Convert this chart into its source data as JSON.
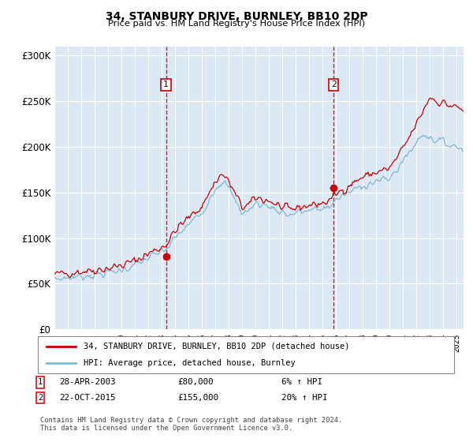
{
  "title": "34, STANBURY DRIVE, BURNLEY, BB10 2DP",
  "subtitle": "Price paid vs. HM Land Registry's House Price Index (HPI)",
  "ylabel_ticks": [
    "£0",
    "£50K",
    "£100K",
    "£150K",
    "£200K",
    "£250K",
    "£300K"
  ],
  "ytick_values": [
    0,
    50000,
    100000,
    150000,
    200000,
    250000,
    300000
  ],
  "ylim": [
    0,
    310000
  ],
  "xlim_start": 1995.0,
  "xlim_end": 2025.5,
  "background_color": "#ffffff",
  "plot_bg_color": "#dce9f5",
  "grid_color": "#ffffff",
  "hpi_color": "#7db8d8",
  "price_color": "#cc0000",
  "vline_color": "#cc0000",
  "transaction1_x": 2003.32,
  "transaction1_y": 80000,
  "transaction2_x": 2015.81,
  "transaction2_y": 155000,
  "legend_line1": "34, STANBURY DRIVE, BURNLEY, BB10 2DP (detached house)",
  "legend_line2": "HPI: Average price, detached house, Burnley",
  "table_row1_date": "28-APR-2003",
  "table_row1_price": "£80,000",
  "table_row1_hpi": "6% ↑ HPI",
  "table_row2_date": "22-OCT-2015",
  "table_row2_price": "£155,000",
  "table_row2_hpi": "20% ↑ HPI",
  "footnote": "Contains HM Land Registry data © Crown copyright and database right 2024.\nThis data is licensed under the Open Government Licence v3.0."
}
